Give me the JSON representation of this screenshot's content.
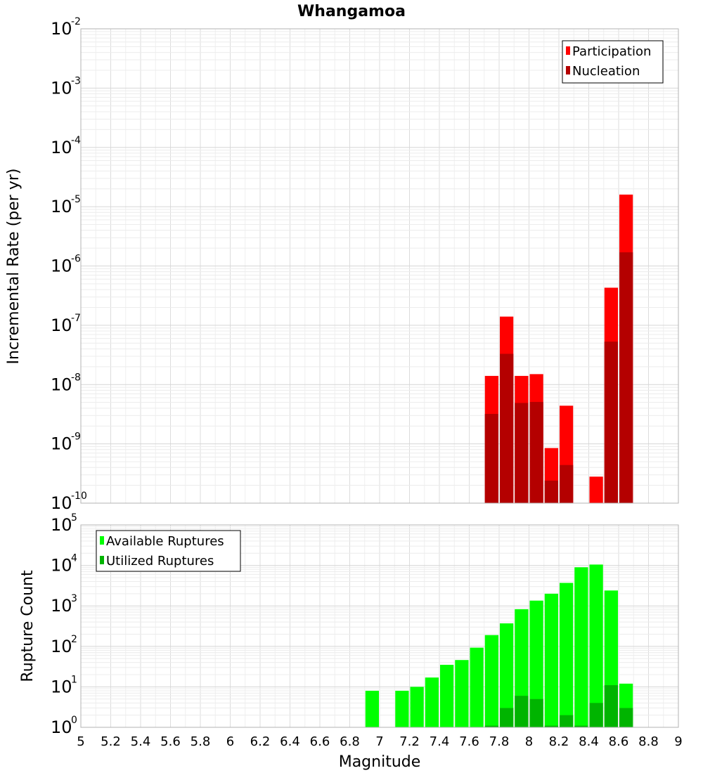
{
  "title": "Whangamoa",
  "xlabel": "Magnitude",
  "colors": {
    "participation": "#ff0000",
    "nucleation": "#b40000",
    "available": "#00ff00",
    "utilized": "#00b400"
  },
  "chart_data": [
    {
      "type": "bar",
      "ylabel": "Incremental Rate (per yr)",
      "yscale": "log",
      "ylim": [
        1e-10,
        0.01
      ],
      "y_ticks": [
        {
          "base": "10",
          "exp": "-2",
          "value": 0.01
        },
        {
          "base": "10",
          "exp": "-3",
          "value": 0.001
        },
        {
          "base": "10",
          "exp": "-4",
          "value": 0.0001
        },
        {
          "base": "10",
          "exp": "-5",
          "value": 1e-05
        },
        {
          "base": "10",
          "exp": "-6",
          "value": 1e-06
        },
        {
          "base": "10",
          "exp": "-7",
          "value": 1e-07
        },
        {
          "base": "10",
          "exp": "-8",
          "value": 1e-08
        },
        {
          "base": "10",
          "exp": "-9",
          "value": 1e-09
        },
        {
          "base": "10",
          "exp": "-10",
          "value": 1e-10
        }
      ],
      "xlim": [
        5,
        9
      ],
      "bin_width": 0.1,
      "legend": "top-right",
      "series": [
        {
          "name": "Participation",
          "color_key": "participation",
          "points": [
            {
              "x": 7.75,
              "y": 1.4e-08
            },
            {
              "x": 7.85,
              "y": 1.4e-07
            },
            {
              "x": 7.95,
              "y": 1.4e-08
            },
            {
              "x": 8.05,
              "y": 1.5e-08
            },
            {
              "x": 8.15,
              "y": 8.5e-10
            },
            {
              "x": 8.25,
              "y": 4.4e-09
            },
            {
              "x": 8.45,
              "y": 2.8e-10
            },
            {
              "x": 8.55,
              "y": 4.3e-07
            },
            {
              "x": 8.65,
              "y": 1.6e-05
            }
          ]
        },
        {
          "name": "Nucleation",
          "color_key": "nucleation",
          "points": [
            {
              "x": 7.75,
              "y": 3.2e-09
            },
            {
              "x": 7.85,
              "y": 3.3e-08
            },
            {
              "x": 7.95,
              "y": 4.9e-09
            },
            {
              "x": 8.05,
              "y": 5.1e-09
            },
            {
              "x": 8.15,
              "y": 2.4e-10
            },
            {
              "x": 8.25,
              "y": 4.4e-10
            },
            {
              "x": 8.55,
              "y": 5.3e-08
            },
            {
              "x": 8.65,
              "y": 1.7e-06
            }
          ]
        }
      ]
    },
    {
      "type": "bar",
      "ylabel": "Rupture Count",
      "yscale": "log",
      "ylim": [
        1,
        100000
      ],
      "y_ticks": [
        {
          "base": "10",
          "exp": "5",
          "value": 100000
        },
        {
          "base": "10",
          "exp": "4",
          "value": 10000
        },
        {
          "base": "10",
          "exp": "3",
          "value": 1000
        },
        {
          "base": "10",
          "exp": "2",
          "value": 100
        },
        {
          "base": "10",
          "exp": "1",
          "value": 10
        },
        {
          "base": "10",
          "exp": "0",
          "value": 1
        }
      ],
      "xlim": [
        5,
        9
      ],
      "x_ticks": [
        "5",
        "5.2",
        "5.4",
        "5.6",
        "5.8",
        "6",
        "6.2",
        "6.4",
        "6.6",
        "6.8",
        "7",
        "7.2",
        "7.4",
        "7.6",
        "7.8",
        "8",
        "8.2",
        "8.4",
        "8.6",
        "8.8",
        "9"
      ],
      "bin_width": 0.1,
      "legend": "top-left",
      "series": [
        {
          "name": "Available Ruptures",
          "color_key": "available",
          "points": [
            {
              "x": 6.95,
              "y": 8
            },
            {
              "x": 7.15,
              "y": 8
            },
            {
              "x": 7.25,
              "y": 10
            },
            {
              "x": 7.35,
              "y": 17
            },
            {
              "x": 7.45,
              "y": 35
            },
            {
              "x": 7.55,
              "y": 46
            },
            {
              "x": 7.65,
              "y": 93
            },
            {
              "x": 7.75,
              "y": 190
            },
            {
              "x": 7.85,
              "y": 370
            },
            {
              "x": 7.95,
              "y": 830
            },
            {
              "x": 8.05,
              "y": 1350
            },
            {
              "x": 8.15,
              "y": 2000
            },
            {
              "x": 8.25,
              "y": 3700
            },
            {
              "x": 8.35,
              "y": 9000
            },
            {
              "x": 8.45,
              "y": 10500
            },
            {
              "x": 8.55,
              "y": 2400
            },
            {
              "x": 8.65,
              "y": 12
            }
          ]
        },
        {
          "name": "Utilized Ruptures",
          "color_key": "utilized",
          "points": [
            {
              "x": 7.75,
              "y": 1.1
            },
            {
              "x": 7.85,
              "y": 3
            },
            {
              "x": 7.95,
              "y": 6
            },
            {
              "x": 8.05,
              "y": 5
            },
            {
              "x": 8.15,
              "y": 1.1
            },
            {
              "x": 8.25,
              "y": 2
            },
            {
              "x": 8.35,
              "y": 1.1
            },
            {
              "x": 8.45,
              "y": 4
            },
            {
              "x": 8.55,
              "y": 11
            },
            {
              "x": 8.65,
              "y": 3
            }
          ]
        }
      ]
    }
  ]
}
